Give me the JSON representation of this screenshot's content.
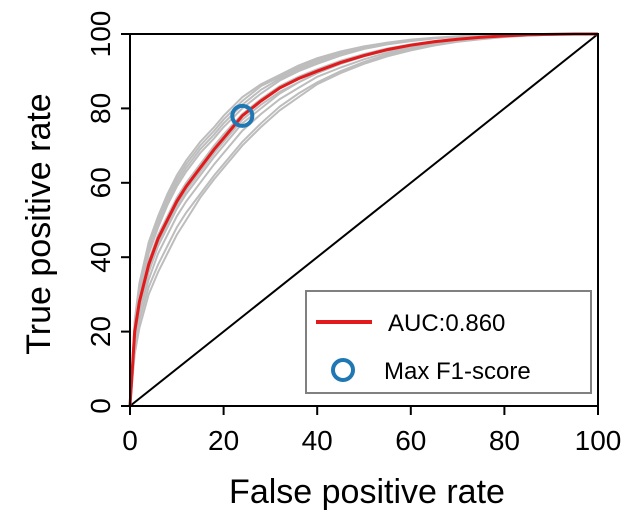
{
  "chart_data": {
    "type": "line",
    "xlabel": "False positive rate",
    "ylabel": "True positive rate",
    "xlim": [
      0,
      100
    ],
    "ylim": [
      0,
      100
    ],
    "xticks": [
      0,
      20,
      40,
      60,
      80,
      100
    ],
    "yticks": [
      0,
      20,
      40,
      60,
      80,
      100
    ],
    "grid": false,
    "legend_position": "bottom-right",
    "colors": {
      "mean_curve": "#e31a1c",
      "fold_curves": "#bdbdbd",
      "marker": "#1f77b4",
      "diagonal": "#000000",
      "legend_border": "#808080"
    },
    "series": [
      {
        "name": "AUC:0.860",
        "role": "mean",
        "x": [
          0,
          1,
          2,
          4,
          6,
          8,
          10,
          12,
          15,
          18,
          20,
          24,
          28,
          32,
          36,
          40,
          45,
          50,
          55,
          60,
          65,
          70,
          75,
          80,
          85,
          90,
          95,
          100
        ],
        "y": [
          0,
          20,
          28,
          38,
          45,
          50,
          55,
          59,
          64,
          69,
          72,
          78,
          82,
          85.5,
          88,
          90,
          92.3,
          94.2,
          95.8,
          97,
          97.9,
          98.6,
          99.1,
          99.5,
          99.8,
          99.9,
          100,
          100
        ]
      },
      {
        "role": "fold",
        "x": [
          0,
          1,
          2,
          4,
          6,
          8,
          10,
          12,
          15,
          18,
          20,
          24,
          28,
          32,
          36,
          40,
          45,
          50,
          55,
          60,
          65,
          70,
          75,
          80,
          85,
          90,
          95,
          100
        ],
        "y": [
          0,
          22,
          32,
          43,
          50,
          56,
          61,
          65,
          70,
          74,
          77,
          82,
          86,
          88.5,
          91,
          93,
          95,
          96.5,
          97.5,
          98.3,
          98.9,
          99.3,
          99.6,
          99.8,
          99.9,
          100,
          100,
          100
        ]
      },
      {
        "role": "fold",
        "x": [
          0,
          1,
          2,
          4,
          6,
          8,
          10,
          12,
          15,
          18,
          20,
          24,
          28,
          32,
          36,
          40,
          45,
          50,
          55,
          60,
          65,
          70,
          75,
          80,
          85,
          90,
          95,
          100
        ],
        "y": [
          0,
          21,
          30,
          41,
          48,
          54,
          59,
          63,
          68,
          72,
          75,
          80,
          84,
          87.5,
          90,
          92,
          94.2,
          96,
          97.2,
          98.1,
          98.8,
          99.2,
          99.5,
          99.8,
          99.9,
          100,
          100,
          100
        ]
      },
      {
        "role": "fold",
        "x": [
          0,
          1,
          2,
          4,
          6,
          8,
          10,
          12,
          15,
          18,
          20,
          24,
          28,
          32,
          36,
          40,
          45,
          50,
          55,
          60,
          65,
          70,
          75,
          80,
          85,
          90,
          95,
          100
        ],
        "y": [
          0,
          19,
          27,
          37,
          44,
          49,
          54,
          58,
          63,
          68,
          71,
          77,
          81,
          84.5,
          87,
          89.5,
          92,
          94,
          95.6,
          96.8,
          97.8,
          98.5,
          99,
          99.4,
          99.7,
          99.9,
          100,
          100
        ]
      },
      {
        "role": "fold",
        "x": [
          0,
          1,
          2,
          4,
          6,
          8,
          10,
          12,
          15,
          18,
          20,
          24,
          28,
          32,
          36,
          40,
          45,
          50,
          55,
          60,
          65,
          70,
          75,
          80,
          85,
          90,
          95,
          100
        ],
        "y": [
          0,
          20,
          29,
          39,
          46,
          51,
          56,
          60,
          65,
          70,
          73,
          78.5,
          82.5,
          86,
          88.5,
          90.5,
          92.8,
          94.6,
          96.1,
          97.2,
          98.1,
          98.7,
          99.2,
          99.6,
          99.8,
          99.9,
          100,
          100
        ]
      },
      {
        "role": "fold",
        "x": [
          0,
          1,
          2,
          4,
          6,
          8,
          10,
          12,
          15,
          18,
          20,
          24,
          28,
          32,
          36,
          40,
          45,
          50,
          55,
          60,
          65,
          70,
          75,
          80,
          85,
          90,
          95,
          100
        ],
        "y": [
          0,
          16,
          23,
          32,
          38,
          43,
          48,
          52,
          57,
          62,
          65,
          71,
          76,
          80.5,
          84,
          87,
          90,
          92.5,
          94.5,
          96,
          97.2,
          98.1,
          98.8,
          99.3,
          99.6,
          99.8,
          100,
          100
        ]
      },
      {
        "role": "fold",
        "x": [
          0,
          1,
          2,
          4,
          6,
          8,
          10,
          12,
          15,
          18,
          20,
          24,
          28,
          32,
          36,
          40,
          45,
          50,
          55,
          60,
          65,
          70,
          75,
          80,
          85,
          90,
          95,
          100
        ],
        "y": [
          0,
          17,
          25,
          34,
          41,
          46,
          51,
          55,
          60,
          65,
          68,
          74,
          78.5,
          82.5,
          85.5,
          88.5,
          91,
          93.2,
          95,
          96.4,
          97.5,
          98.3,
          98.9,
          99.4,
          99.7,
          99.9,
          100,
          100
        ]
      },
      {
        "role": "fold",
        "x": [
          0,
          1,
          2,
          4,
          6,
          8,
          10,
          12,
          15,
          18,
          20,
          24,
          28,
          32,
          36,
          40,
          45,
          50,
          55,
          60,
          65,
          70,
          75,
          80,
          85,
          90,
          95,
          100
        ],
        "y": [
          0,
          18,
          26,
          36,
          43,
          48,
          53,
          57,
          62,
          67,
          70,
          76,
          80,
          84,
          87,
          89.5,
          92,
          94,
          95.6,
          96.9,
          97.9,
          98.6,
          99.1,
          99.5,
          99.8,
          99.9,
          100,
          100
        ]
      },
      {
        "role": "fold",
        "x": [
          0,
          1,
          2,
          4,
          6,
          8,
          10,
          12,
          15,
          18,
          20,
          24,
          28,
          32,
          36,
          40,
          45,
          50,
          55,
          60,
          65,
          70,
          75,
          80,
          85,
          90,
          95,
          100
        ],
        "y": [
          0,
          14,
          21,
          30,
          36,
          41,
          46,
          50,
          56,
          61,
          64,
          70,
          75,
          79.5,
          83,
          86.5,
          89.5,
          92,
          94,
          95.6,
          96.9,
          97.9,
          98.6,
          99.2,
          99.6,
          99.8,
          100,
          100
        ]
      },
      {
        "role": "fold",
        "x": [
          0,
          1,
          2,
          4,
          6,
          8,
          10,
          12,
          15,
          18,
          20,
          24,
          28,
          32,
          36,
          40,
          45,
          50,
          55,
          60,
          65,
          70,
          75,
          80,
          85,
          90,
          95,
          100
        ],
        "y": [
          0,
          23,
          33,
          44,
          51,
          57,
          62,
          66,
          71,
          75,
          78,
          83,
          86.5,
          89,
          91.5,
          93.5,
          95.3,
          96.7,
          97.7,
          98.5,
          99,
          99.4,
          99.7,
          99.9,
          100,
          100,
          100,
          100
        ]
      },
      {
        "role": "fold",
        "x": [
          0,
          1,
          2,
          4,
          6,
          8,
          10,
          12,
          15,
          18,
          20,
          24,
          28,
          32,
          36,
          40,
          45,
          50,
          55,
          60,
          65,
          70,
          75,
          80,
          85,
          90,
          95,
          100
        ],
        "y": [
          0,
          21,
          31,
          42,
          49,
          55,
          60,
          64,
          69,
          73,
          76,
          81,
          85,
          88,
          90.5,
          92.5,
          94.7,
          96.3,
          97.4,
          98.2,
          98.9,
          99.3,
          99.6,
          99.8,
          99.9,
          100,
          100,
          100
        ]
      },
      {
        "name": "Max F1-score",
        "role": "marker",
        "x": [
          24
        ],
        "y": [
          78
        ]
      }
    ],
    "diagonal": {
      "x": [
        0,
        100
      ],
      "y": [
        0,
        100
      ]
    }
  }
}
